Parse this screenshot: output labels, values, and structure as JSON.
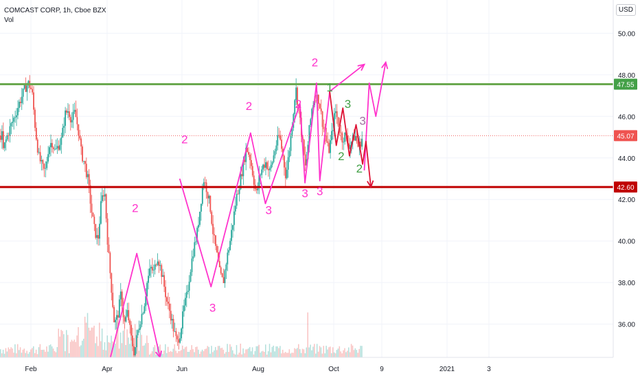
{
  "header": {
    "symbol_line": "COMCAST CORP, 1h, Cboe BZX",
    "indicator": "Vol",
    "currency": "USD"
  },
  "chart_data": {
    "type": "candlestick",
    "title": "COMCAST CORP, 1h, Cboe BZX",
    "ylim": [
      34.4,
      51.6
    ],
    "y_ticks": [
      "50.00",
      "48.00",
      "46.00",
      "44.00",
      "42.00",
      "40.00",
      "38.00",
      "36.00"
    ],
    "x_ticks": [
      "Feb",
      "Apr",
      "Jun",
      "Aug",
      "Oct",
      "9",
      "2021",
      "3"
    ],
    "price_levels": [
      {
        "label": "47.55",
        "value": 47.55,
        "color": "#43a047"
      },
      {
        "label": "45.07",
        "value": 45.07,
        "color": "#ef5350"
      },
      {
        "label": "42.60",
        "value": 42.6,
        "color": "#c00000"
      }
    ],
    "horizontal_lines": [
      {
        "value": 47.55,
        "color": "#6aa84f"
      },
      {
        "value": 42.6,
        "color": "#c00000"
      }
    ],
    "price_path": [
      [
        1,
        44.2
      ],
      [
        3,
        44.8
      ],
      [
        5,
        45.3
      ],
      [
        7,
        45.7
      ],
      [
        9,
        46.1
      ],
      [
        11,
        46.6
      ],
      [
        13,
        47.0
      ],
      [
        15,
        47.4
      ],
      [
        17,
        47.6
      ],
      [
        19,
        47.2
      ],
      [
        21,
        45.4
      ],
      [
        23,
        44.1
      ],
      [
        25,
        43.6
      ],
      [
        27,
        43.3
      ],
      [
        29,
        44.5
      ],
      [
        31,
        44.8
      ],
      [
        33,
        44.3
      ],
      [
        35,
        44.6
      ],
      [
        37,
        44.9
      ],
      [
        39,
        46.1
      ],
      [
        41,
        46.3
      ],
      [
        43,
        45.8
      ],
      [
        45,
        46.2
      ],
      [
        47,
        45.4
      ],
      [
        49,
        44.2
      ],
      [
        51,
        43.7
      ],
      [
        53,
        42.9
      ],
      [
        55,
        41.5
      ],
      [
        57,
        40.5
      ],
      [
        59,
        40.0
      ],
      [
        61,
        41.9
      ],
      [
        63,
        42.5
      ],
      [
        65,
        39.8
      ],
      [
        67,
        37.9
      ],
      [
        69,
        36.0
      ],
      [
        71,
        36.4
      ],
      [
        73,
        37.5
      ],
      [
        75,
        36.0
      ],
      [
        77,
        36.6
      ],
      [
        79,
        35.4
      ],
      [
        81,
        34.6
      ],
      [
        83,
        35.6
      ],
      [
        85,
        36.3
      ],
      [
        87,
        36.9
      ],
      [
        89,
        38.1
      ],
      [
        91,
        38.7
      ],
      [
        93,
        38.5
      ],
      [
        95,
        39.3
      ],
      [
        97,
        38.7
      ],
      [
        99,
        37.9
      ],
      [
        101,
        37.0
      ],
      [
        103,
        36.5
      ],
      [
        105,
        35.7
      ],
      [
        107,
        35.1
      ],
      [
        109,
        35.6
      ],
      [
        111,
        36.7
      ],
      [
        113,
        37.4
      ],
      [
        115,
        38.6
      ],
      [
        117,
        39.6
      ],
      [
        119,
        40.3
      ],
      [
        121,
        41.6
      ],
      [
        123,
        43.0
      ],
      [
        125,
        42.5
      ],
      [
        127,
        41.7
      ],
      [
        129,
        40.3
      ],
      [
        131,
        39.4
      ],
      [
        133,
        38.4
      ],
      [
        135,
        38.0
      ],
      [
        137,
        39.1
      ],
      [
        139,
        39.9
      ],
      [
        141,
        41.0
      ],
      [
        143,
        42.1
      ],
      [
        145,
        42.8
      ],
      [
        147,
        43.6
      ],
      [
        149,
        44.5
      ],
      [
        151,
        44.1
      ],
      [
        153,
        43.2
      ],
      [
        155,
        42.2
      ],
      [
        157,
        43.1
      ],
      [
        159,
        43.6
      ],
      [
        161,
        43.8
      ],
      [
        163,
        43.3
      ],
      [
        165,
        43.9
      ],
      [
        167,
        44.6
      ],
      [
        169,
        45.1
      ],
      [
        171,
        44.2
      ],
      [
        173,
        43.1
      ],
      [
        175,
        44.3
      ],
      [
        177,
        45.8
      ],
      [
        179,
        47.4
      ],
      [
        181,
        46.2
      ],
      [
        183,
        44.8
      ],
      [
        185,
        43.4
      ],
      [
        187,
        45.2
      ],
      [
        189,
        46.5
      ],
      [
        191,
        47.0
      ],
      [
        193,
        46.8
      ],
      [
        195,
        45.8
      ],
      [
        197,
        45.0
      ],
      [
        199,
        44.3
      ],
      [
        201,
        45.2
      ],
      [
        203,
        46.3
      ],
      [
        205,
        45.6
      ],
      [
        207,
        44.9
      ],
      [
        209,
        45.1
      ],
      [
        211,
        44.6
      ],
      [
        213,
        44.8
      ],
      [
        215,
        45.1
      ],
      [
        217,
        44.5
      ],
      [
        219,
        44.9
      ],
      [
        220,
        45.07
      ]
    ],
    "wave_drawings": [
      {
        "color": "#ff33cc",
        "points": [
          [
            67,
            34.4
          ],
          [
            83,
            39.4
          ],
          [
            97,
            34.4
          ]
        ]
      },
      {
        "color": "#ff33cc",
        "points": [
          [
            109,
            43.0
          ],
          [
            128,
            37.8
          ],
          [
            152,
            45.2
          ],
          [
            161,
            41.8
          ],
          [
            182,
            46.6
          ],
          [
            185,
            42.8
          ],
          [
            192,
            47.6
          ],
          [
            194,
            42.9
          ],
          [
            200,
            47.2
          ],
          [
            221,
            48.5
          ]
        ]
      },
      {
        "color": "#ff33cc",
        "points": [
          [
            221,
            43.4
          ],
          [
            224,
            47.6
          ],
          [
            228,
            46.0
          ],
          [
            234,
            48.6
          ]
        ]
      },
      {
        "color": "#dd1133",
        "points": [
          [
            200,
            47.2
          ],
          [
            204,
            44.6
          ],
          [
            208,
            46.4
          ],
          [
            212,
            44.1
          ],
          [
            216,
            45.6
          ],
          [
            220,
            43.7
          ],
          [
            222,
            44.8
          ],
          [
            225,
            42.6
          ]
        ]
      }
    ],
    "wave_labels": [
      {
        "text": "2",
        "x": 82,
        "y": 41.4,
        "color": "#ff33cc"
      },
      {
        "text": "2",
        "x": 112,
        "y": 44.7,
        "color": "#ff33cc"
      },
      {
        "text": "2",
        "x": 151,
        "y": 46.3,
        "color": "#ff33cc"
      },
      {
        "text": "2",
        "x": 181,
        "y": 46.4,
        "color": "#ff33cc"
      },
      {
        "text": "2",
        "x": 191,
        "y": 48.4,
        "color": "#ff33cc"
      },
      {
        "text": "3",
        "x": 129,
        "y": 36.6,
        "color": "#ff33cc"
      },
      {
        "text": "3",
        "x": 163,
        "y": 41.3,
        "color": "#ff33cc"
      },
      {
        "text": "3",
        "x": 185,
        "y": 42.1,
        "color": "#ff33cc"
      },
      {
        "text": "3",
        "x": 194,
        "y": 42.2,
        "color": "#ff33cc"
      },
      {
        "text": "1",
        "x": 200,
        "y": 47.2,
        "color": "#43a047"
      },
      {
        "text": "3",
        "x": 211,
        "y": 46.4,
        "color": "#43a047"
      },
      {
        "text": "2",
        "x": 207,
        "y": 43.9,
        "color": "#43a047"
      },
      {
        "text": "2",
        "x": 218,
        "y": 43.3,
        "color": "#43a047"
      },
      {
        "text": "3",
        "x": 220,
        "y": 45.6,
        "color": "#a070a0"
      }
    ],
    "volume_max_hint": 1
  }
}
